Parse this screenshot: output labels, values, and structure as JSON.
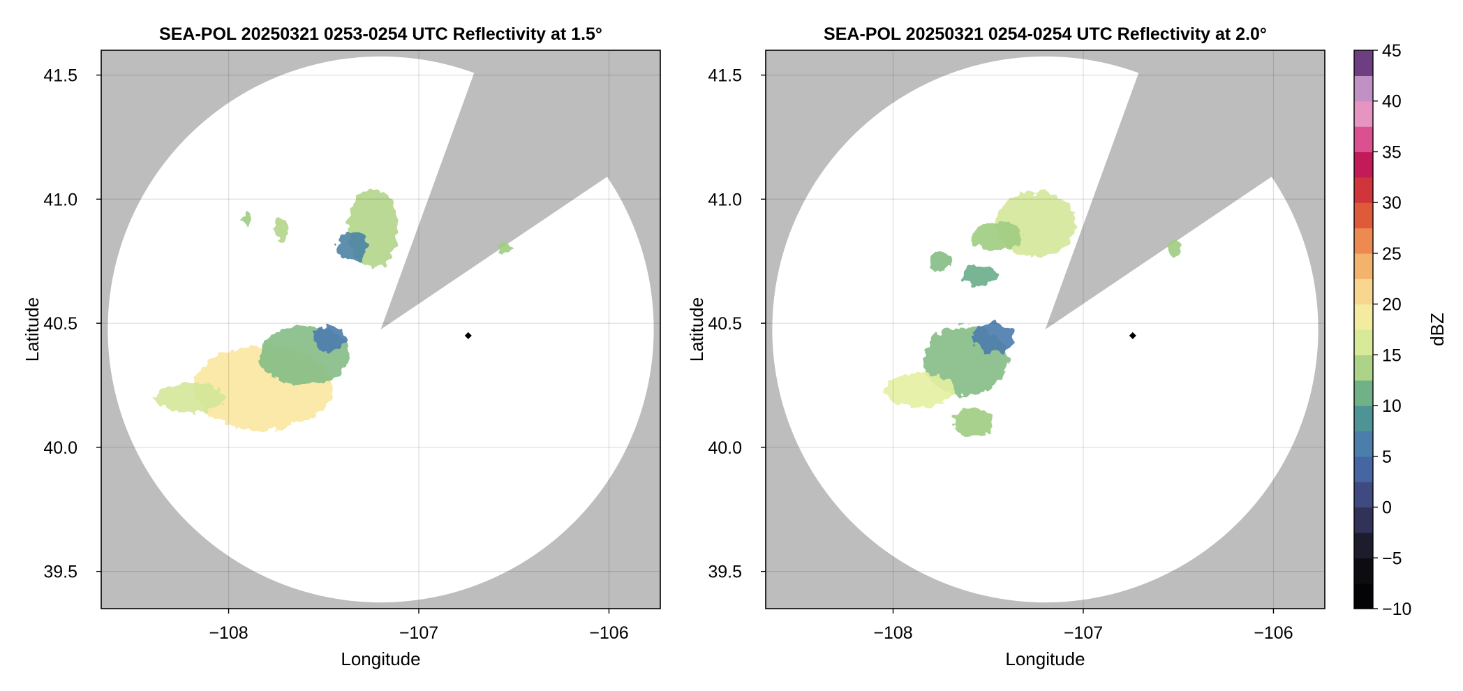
{
  "chart_data": [
    {
      "type": "heatmap",
      "title": "SEA-POL 20250321 0253-0254 UTC Reflectivity at 1.5°",
      "xlabel": "Longitude",
      "ylabel": "Latitude",
      "xlim": [
        -108.67,
        -105.73
      ],
      "ylim": [
        39.35,
        41.6
      ],
      "xticks": [
        -108,
        -107,
        -106
      ],
      "xtick_labels": [
        "−108",
        "−107",
        "−106"
      ],
      "yticks": [
        39.5,
        40.0,
        40.5,
        41.0,
        41.5
      ],
      "ytick_labels": [
        "39.5",
        "40.0",
        "40.5",
        "41.0",
        "41.5"
      ],
      "grid": true,
      "background_color": "#bdbdbd",
      "coverage_color": "#ffffff",
      "radar": {
        "lon": -107.2,
        "lat": 40.475,
        "range_deg_lat": 1.1
      },
      "blocked_sector_deg": [
        20,
        56
      ],
      "site_marker": {
        "lon": -106.74,
        "lat": 40.45
      },
      "echoes": [
        {
          "lon": -107.82,
          "lat": 40.24,
          "rx": 0.28,
          "ry": 0.17,
          "dbz": 20
        },
        {
          "lon": -107.6,
          "lat": 40.37,
          "rx": 0.18,
          "ry": 0.12,
          "dbz": 12
        },
        {
          "lon": -108.2,
          "lat": 40.2,
          "rx": 0.14,
          "ry": 0.06,
          "dbz": 16
        },
        {
          "lon": -107.47,
          "lat": 40.44,
          "rx": 0.07,
          "ry": 0.05,
          "dbz": 6
        },
        {
          "lon": -107.24,
          "lat": 40.88,
          "rx": 0.1,
          "ry": 0.16,
          "dbz": 14
        },
        {
          "lon": -107.35,
          "lat": 40.81,
          "rx": 0.06,
          "ry": 0.06,
          "dbz": 7
        },
        {
          "lon": -107.72,
          "lat": 40.88,
          "rx": 0.03,
          "ry": 0.05,
          "dbz": 14
        },
        {
          "lon": -107.9,
          "lat": 40.92,
          "rx": 0.02,
          "ry": 0.03,
          "dbz": 13
        },
        {
          "lon": -106.54,
          "lat": 40.8,
          "rx": 0.03,
          "ry": 0.02,
          "dbz": 13
        }
      ]
    },
    {
      "type": "heatmap",
      "title": "SEA-POL 20250321 0254-0254 UTC Reflectivity at 2.0°",
      "xlabel": "Longitude",
      "ylabel": "Latitude",
      "xlim": [
        -108.67,
        -105.73
      ],
      "ylim": [
        39.35,
        41.6
      ],
      "xticks": [
        -108,
        -107,
        -106
      ],
      "xtick_labels": [
        "−108",
        "−107",
        "−106"
      ],
      "yticks": [
        39.5,
        40.0,
        40.5,
        41.0,
        41.5
      ],
      "ytick_labels": [
        "39.5",
        "40.0",
        "40.5",
        "41.0",
        "41.5"
      ],
      "grid": true,
      "background_color": "#bdbdbd",
      "coverage_color": "#ffffff",
      "radar": {
        "lon": -107.2,
        "lat": 40.475,
        "range_deg_lat": 1.1
      },
      "blocked_sector_deg": [
        20,
        56
      ],
      "site_marker": {
        "lon": -106.74,
        "lat": 40.45
      },
      "echoes": [
        {
          "lon": -107.25,
          "lat": 40.9,
          "rx": 0.16,
          "ry": 0.13,
          "dbz": 16
        },
        {
          "lon": -107.45,
          "lat": 40.85,
          "rx": 0.1,
          "ry": 0.06,
          "dbz": 13
        },
        {
          "lon": -107.55,
          "lat": 40.69,
          "rx": 0.07,
          "ry": 0.04,
          "dbz": 11
        },
        {
          "lon": -107.75,
          "lat": 40.75,
          "rx": 0.04,
          "ry": 0.04,
          "dbz": 12
        },
        {
          "lon": -107.62,
          "lat": 40.35,
          "rx": 0.17,
          "ry": 0.14,
          "dbz": 12
        },
        {
          "lon": -107.86,
          "lat": 40.23,
          "rx": 0.14,
          "ry": 0.07,
          "dbz": 17
        },
        {
          "lon": -107.47,
          "lat": 40.44,
          "rx": 0.08,
          "ry": 0.06,
          "dbz": 6
        },
        {
          "lon": -107.58,
          "lat": 40.1,
          "rx": 0.08,
          "ry": 0.06,
          "dbz": 13
        },
        {
          "lon": -106.52,
          "lat": 40.8,
          "rx": 0.03,
          "ry": 0.03,
          "dbz": 13
        }
      ]
    }
  ],
  "colorbar": {
    "label": "dBZ",
    "min": -10,
    "max": 45,
    "step": 2.5,
    "ticks": [
      -10,
      -5,
      0,
      5,
      10,
      15,
      20,
      25,
      30,
      35,
      40,
      45
    ],
    "tick_labels": [
      "−10",
      "−5",
      "0",
      "5",
      "10",
      "15",
      "20",
      "25",
      "30",
      "35",
      "40",
      "45"
    ],
    "stops": [
      {
        "v": -10,
        "c": "#000000"
      },
      {
        "v": -5,
        "c": "#111117"
      },
      {
        "v": 0,
        "c": "#3b3d6e"
      },
      {
        "v": 5,
        "c": "#4a73b5"
      },
      {
        "v": 10,
        "c": "#4f9e8c"
      },
      {
        "v": 13,
        "c": "#9fcc82"
      },
      {
        "v": 17,
        "c": "#e6f0a0"
      },
      {
        "v": 20,
        "c": "#fbe7a0"
      },
      {
        "v": 25,
        "c": "#f2a25c"
      },
      {
        "v": 30,
        "c": "#d8422e"
      },
      {
        "v": 34,
        "c": "#c2185b"
      },
      {
        "v": 37,
        "c": "#e262a2"
      },
      {
        "v": 40,
        "c": "#e8b8d8"
      },
      {
        "v": 43,
        "c": "#8b5aa6"
      },
      {
        "v": 45,
        "c": "#3d0e46"
      }
    ]
  }
}
